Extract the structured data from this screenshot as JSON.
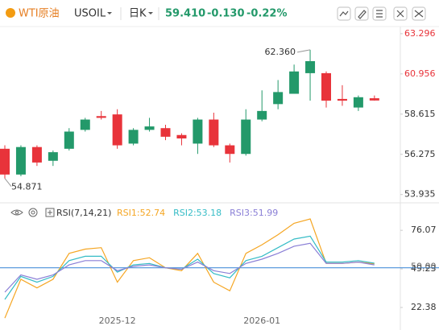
{
  "header": {
    "name": "WTI原油",
    "symbol": "USOIL",
    "period": "日K",
    "last": "59.410",
    "change": "-0.130",
    "change_pct": "-0.22%"
  },
  "chart_data": [
    {
      "type": "candlestick",
      "categories": [
        null,
        null,
        null,
        null,
        null,
        null,
        null,
        "2025-12",
        null,
        null,
        null,
        null,
        null,
        null,
        null,
        null,
        "2026-01",
        null,
        null,
        null,
        null,
        null,
        null,
        null
      ],
      "open": [
        56.6,
        55.1,
        56.7,
        55.9,
        56.6,
        57.7,
        58.5,
        58.6,
        56.9,
        57.7,
        57.8,
        57.4,
        56.9,
        58.3,
        56.8,
        56.3,
        58.3,
        59.2,
        59.8,
        61.0,
        61.0,
        59.5,
        59.0,
        59.54
      ],
      "high": [
        56.8,
        56.8,
        56.8,
        56.5,
        57.8,
        58.4,
        58.8,
        58.9,
        57.8,
        58.4,
        58.0,
        57.5,
        58.4,
        58.7,
        56.9,
        58.9,
        60.0,
        60.6,
        61.5,
        62.36,
        61.1,
        60.3,
        59.7,
        59.7
      ],
      "low": [
        54.871,
        55.0,
        55.6,
        55.6,
        56.5,
        57.6,
        58.3,
        56.6,
        56.8,
        57.6,
        57.1,
        56.8,
        56.3,
        56.7,
        55.8,
        56.2,
        58.2,
        58.9,
        59.8,
        59.4,
        59.0,
        59.1,
        58.8,
        59.4
      ],
      "close": [
        55.1,
        56.7,
        55.8,
        56.4,
        57.6,
        58.3,
        58.4,
        56.8,
        57.7,
        57.9,
        57.3,
        57.2,
        58.3,
        56.8,
        56.3,
        58.3,
        58.8,
        59.9,
        61.1,
        61.7,
        59.4,
        59.4,
        59.6,
        59.41
      ],
      "up_color": "#23996a",
      "down_color": "#e8333a",
      "ylim": [
        53.5,
        63.9
      ],
      "yticks": [
        63.296,
        60.956,
        58.615,
        56.275,
        53.935
      ],
      "max_label": {
        "value": 62.36,
        "label": "62.360"
      },
      "min_label": {
        "value": 54.871,
        "label": "54.871"
      }
    },
    {
      "type": "line",
      "title": "RSI(7,14,21)",
      "series": [
        {
          "name": "RSI1:52.74",
          "color": "#f5a623",
          "values": [
            15,
            42,
            36,
            42,
            60,
            63,
            64,
            40,
            55,
            57,
            50,
            48,
            60,
            40,
            34,
            60,
            66,
            73,
            81,
            84,
            53,
            53,
            54,
            52.74
          ]
        },
        {
          "name": "RSI2:53.18",
          "color": "#35bcc6",
          "values": [
            28,
            44,
            40,
            44,
            55,
            58,
            58,
            47,
            52,
            53,
            50,
            49,
            56,
            46,
            43,
            55,
            58,
            64,
            70,
            72,
            54,
            54,
            55,
            53.18
          ]
        },
        {
          "name": "RSI3:51.99",
          "color": "#8a7fd6",
          "values": [
            33,
            45,
            42,
            45,
            52,
            55,
            55,
            48,
            51,
            52,
            50,
            49,
            54,
            48,
            46,
            53,
            56,
            60,
            65,
            67,
            53,
            53,
            54,
            51.99
          ]
        }
      ],
      "ylim": [
        9.5,
        84
      ],
      "yticks": [
        76.07,
        49.23,
        22.38
      ],
      "reference_line": {
        "value": 50,
        "label": "50.00",
        "color": "#4a90d9"
      }
    }
  ]
}
